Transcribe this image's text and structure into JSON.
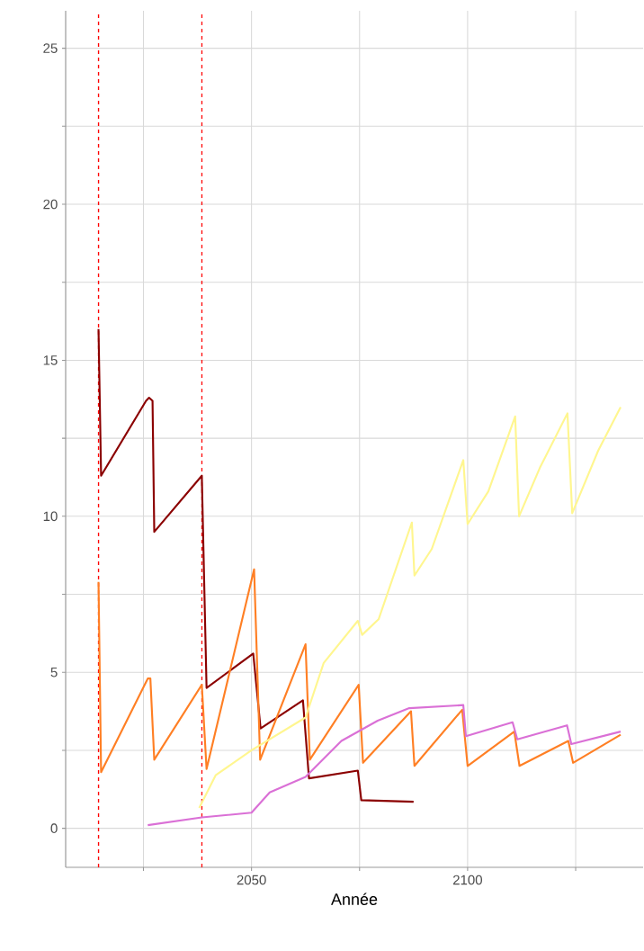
{
  "chart_data": {
    "type": "line",
    "xlabel": "Année",
    "xlim": [
      2007,
      2140.6
    ],
    "ylim": [
      -1.25,
      26.2
    ],
    "xticks": [
      {
        "value": 2025,
        "label": null
      },
      2050,
      {
        "value": 2075,
        "label": null
      },
      2100,
      {
        "value": 2125,
        "label": null
      }
    ],
    "yticks": [
      0,
      {
        "value": 2.5,
        "label": null
      },
      5,
      {
        "value": 7.5,
        "label": null
      },
      10,
      {
        "value": 12.5,
        "label": null
      },
      15,
      {
        "value": 17.5,
        "label": null
      },
      20,
      {
        "value": 22.5,
        "label": null
      },
      25
    ],
    "grid": true,
    "marker": "none",
    "line_style": "solid",
    "ref_lines": [
      {
        "axis": "x",
        "value": 2014.6,
        "color": "#ff0000",
        "line_style": "dashed"
      },
      {
        "axis": "x",
        "value": 2038.5,
        "color": "#ff0000",
        "line_style": "dashed"
      }
    ],
    "series": [
      {
        "color": "#8b0000",
        "x": [
          2014.6,
          2015.2,
          2025.6,
          2026.3,
          2027.1,
          2027.5,
          2038.5,
          2039.6,
          2050.4,
          2052.1,
          2061.9,
          2063.3,
          2074.6,
          2075.4,
          2087.5
        ],
        "values": [
          16.0,
          11.3,
          13.7,
          13.8,
          13.7,
          9.5,
          11.3,
          4.5,
          5.6,
          3.2,
          4.1,
          1.6,
          1.85,
          0.9,
          0.85
        ]
      },
      {
        "color": "#ff7f24",
        "x": [
          2014.6,
          2015.2,
          2026.0,
          2026.6,
          2027.5,
          2038.5,
          2039.6,
          2050.6,
          2052.0,
          2062.5,
          2063.5,
          2074.8,
          2075.8,
          2086.9,
          2087.7,
          2098.75,
          2100.0,
          2110.8,
          2112.0,
          2123.3,
          2124.4,
          2135.4
        ],
        "values": [
          7.9,
          1.8,
          4.8,
          4.8,
          2.2,
          4.6,
          1.9,
          8.3,
          2.2,
          5.9,
          2.2,
          4.6,
          2.1,
          3.75,
          2.0,
          3.8,
          2.0,
          3.1,
          2.0,
          2.8,
          2.1,
          3.0
        ]
      },
      {
        "color": "#fff68f",
        "x": [
          2037.9,
          2041.7,
          2050.0,
          2062.5,
          2066.7,
          2074.6,
          2075.6,
          2079.4,
          2087.1,
          2087.7,
          2091.7,
          2099.0,
          2100.0,
          2104.8,
          2111.0,
          2111.9,
          2116.7,
          2123.1,
          2124.2,
          2130.2,
          2135.4
        ],
        "values": [
          0.65,
          1.7,
          2.5,
          3.55,
          5.3,
          6.65,
          6.2,
          6.7,
          9.8,
          8.1,
          8.95,
          11.8,
          9.75,
          10.8,
          13.2,
          10.0,
          11.55,
          13.3,
          10.1,
          12.1,
          13.5
        ]
      },
      {
        "color": "#da70d6",
        "x": [
          2026.0,
          2038.5,
          2050.0,
          2054.2,
          2062.5,
          2070.8,
          2079.2,
          2086.5,
          2099.0,
          2099.6,
          2110.4,
          2111.5,
          2123.0,
          2124.0,
          2135.4
        ],
        "values": [
          0.1,
          0.35,
          0.5,
          1.15,
          1.65,
          2.8,
          3.45,
          3.85,
          3.95,
          2.95,
          3.4,
          2.85,
          3.3,
          2.7,
          3.1
        ]
      }
    ]
  }
}
